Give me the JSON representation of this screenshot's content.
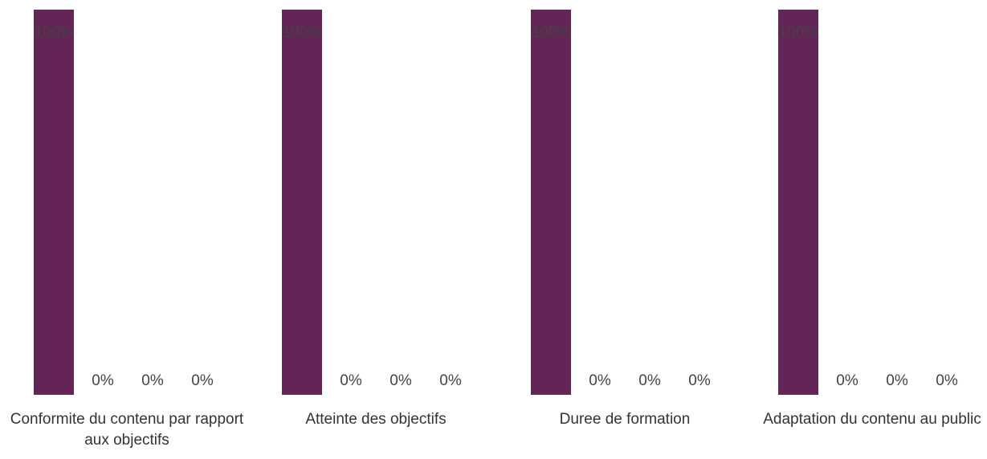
{
  "chart_data": {
    "type": "bar",
    "categories": [
      "Conformite du contenu par rapport aux objectifs",
      "Atteinte des objectifs",
      "Duree de formation",
      "Adaptation du contenu au public"
    ],
    "series": [
      {
        "values": [
          100,
          100,
          100,
          100
        ],
        "labels": [
          "100%",
          "100%",
          "100%",
          "100%"
        ],
        "color": "#632456"
      },
      {
        "values": [
          0,
          0,
          0,
          0
        ],
        "labels": [
          "0%",
          "0%",
          "0%",
          "0%"
        ]
      },
      {
        "values": [
          0,
          0,
          0,
          0
        ],
        "labels": [
          "0%",
          "0%",
          "0%",
          "0%"
        ]
      },
      {
        "values": [
          0,
          0,
          0,
          0
        ],
        "labels": [
          "0%",
          "0%",
          "0%",
          "0%"
        ]
      }
    ],
    "ylim": [
      0,
      100
    ],
    "grid": false,
    "legend": "none"
  }
}
